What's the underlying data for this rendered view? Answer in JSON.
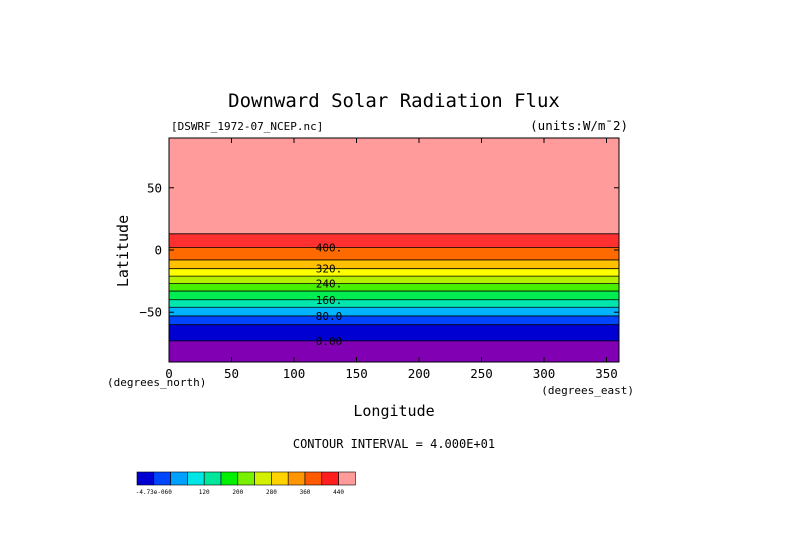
{
  "chart_data": {
    "type": "filled-contour",
    "title": "Downward Solar Radiation Flux",
    "file_label": "[DSWRF_1972-07_NCEP.nc]",
    "units_label": "(units:W/m¯2)",
    "xlabel": "Longitude",
    "ylabel": "Latitude",
    "x_unit_label": "(degrees_east)",
    "y_unit_label": "(degrees_north)",
    "xlim": [
      0,
      360
    ],
    "ylim": [
      -90,
      90
    ],
    "x_ticks": [
      0,
      50,
      100,
      150,
      200,
      250,
      300,
      350
    ],
    "y_ticks": [
      50,
      0,
      -50
    ],
    "y_tick_labels": [
      "50",
      "0",
      "−50"
    ],
    "contour_interval_text": "CONTOUR INTERVAL = 4.000E+01",
    "bands": [
      {
        "lat_top": 90,
        "lat_bottom": 13,
        "color": "#ff9b9b"
      },
      {
        "lat_top": 13,
        "lat_bottom": 2,
        "color": "#ff3030"
      },
      {
        "lat_top": 2,
        "lat_bottom": -8,
        "color": "#ff6a00"
      },
      {
        "lat_top": -8,
        "lat_bottom": -15,
        "color": "#ffc000"
      },
      {
        "lat_top": -15,
        "lat_bottom": -21,
        "color": "#ffff00"
      },
      {
        "lat_top": -21,
        "lat_bottom": -27,
        "color": "#b4f000"
      },
      {
        "lat_top": -27,
        "lat_bottom": -33,
        "color": "#46f000"
      },
      {
        "lat_top": -33,
        "lat_bottom": -40,
        "color": "#00ee52"
      },
      {
        "lat_top": -40,
        "lat_bottom": -46,
        "color": "#00e6ae"
      },
      {
        "lat_top": -46,
        "lat_bottom": -53,
        "color": "#00b4ff"
      },
      {
        "lat_top": -53,
        "lat_bottom": -60,
        "color": "#0046ff"
      },
      {
        "lat_top": -60,
        "lat_bottom": -73,
        "color": "#0000d2"
      },
      {
        "lat_top": -73,
        "lat_bottom": -90,
        "color": "#8200b4"
      }
    ],
    "contour_lines": [
      13,
      2,
      -8,
      -15,
      -21,
      -27,
      -33,
      -40,
      -46,
      -53,
      -60,
      -73
    ],
    "contour_labels": [
      {
        "text": "400.",
        "lon": 128,
        "lat": 2
      },
      {
        "text": "320.",
        "lon": 128,
        "lat": -15
      },
      {
        "text": "240.",
        "lon": 128,
        "lat": -27
      },
      {
        "text": "160.",
        "lon": 128,
        "lat": -40
      },
      {
        "text": "80.0",
        "lon": 128,
        "lat": -53
      },
      {
        "text": "0.00",
        "lon": 128,
        "lat": -73
      }
    ],
    "colorbar": {
      "colors": [
        "#0000d2",
        "#0046ff",
        "#00a0ff",
        "#00e6e6",
        "#00e69a",
        "#00f000",
        "#78f000",
        "#d2f000",
        "#ffd200",
        "#ff9600",
        "#ff5a00",
        "#ff1e1e",
        "#ff9b9b"
      ],
      "labels": [
        "-4.73e-060",
        "120",
        "200",
        "280",
        "360",
        "440"
      ],
      "label_after_box": [
        0,
        3,
        5,
        7,
        9,
        11
      ]
    }
  }
}
